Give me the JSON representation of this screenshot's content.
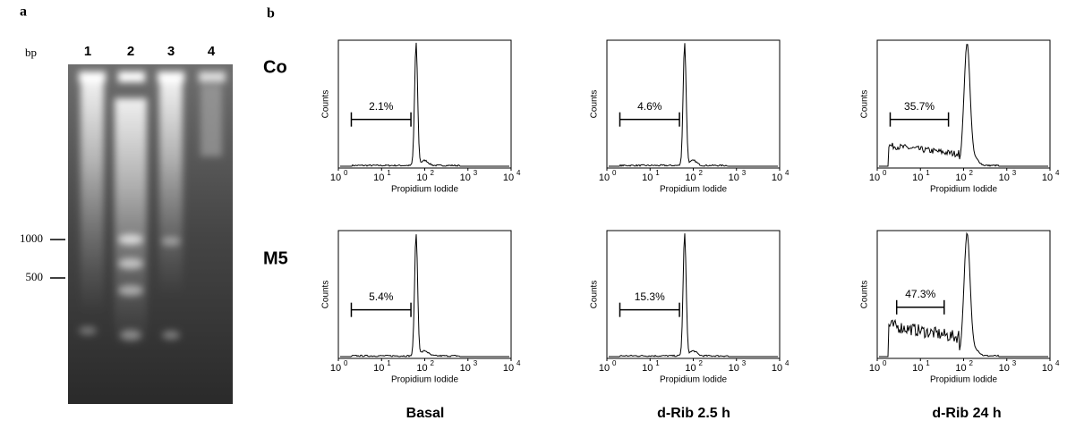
{
  "panel_a": {
    "label": "a",
    "bp_label": "bp",
    "lanes": [
      "1",
      "2",
      "3",
      "4"
    ],
    "markers": [
      "1000",
      "500"
    ]
  },
  "panel_b": {
    "label": "b",
    "rows": [
      "Co",
      "M5"
    ],
    "columns": [
      "Basal",
      "d-Rib 2.5 h",
      "d-Rib 24 h"
    ],
    "x_axis_label": "Propidium Iodide",
    "y_axis_label": "Counts",
    "x_tick_base": "10",
    "x_tick_exponents": [
      "0",
      "1",
      "2",
      "3",
      "4"
    ],
    "gates": [
      [
        "2.1%",
        "4.6%",
        "35.7%"
      ],
      [
        "5.4%",
        "15.3%",
        "47.3%"
      ]
    ]
  }
}
